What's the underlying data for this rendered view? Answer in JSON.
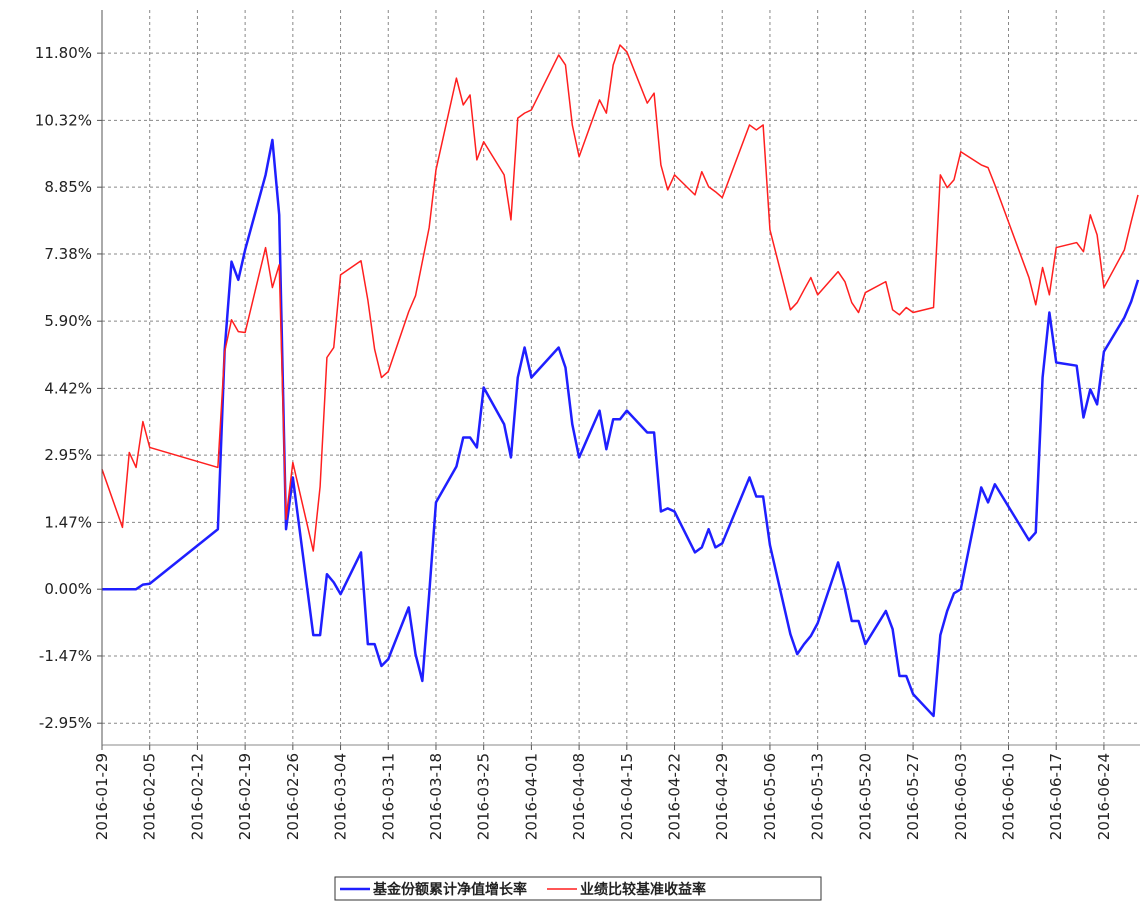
{
  "chart_data": {
    "type": "line",
    "x": [
      "2016-01-29",
      "2016-02-01",
      "2016-02-02",
      "2016-02-03",
      "2016-02-04",
      "2016-02-05",
      "2016-02-15",
      "2016-02-16",
      "2016-02-17",
      "2016-02-18",
      "2016-02-19",
      "2016-02-22",
      "2016-02-23",
      "2016-02-24",
      "2016-02-25",
      "2016-02-26",
      "2016-02-29",
      "2016-03-01",
      "2016-03-02",
      "2016-03-03",
      "2016-03-04",
      "2016-03-07",
      "2016-03-08",
      "2016-03-09",
      "2016-03-10",
      "2016-03-11",
      "2016-03-14",
      "2016-03-15",
      "2016-03-16",
      "2016-03-17",
      "2016-03-18",
      "2016-03-21",
      "2016-03-22",
      "2016-03-23",
      "2016-03-24",
      "2016-03-25",
      "2016-03-28",
      "2016-03-29",
      "2016-03-30",
      "2016-03-31",
      "2016-04-01",
      "2016-04-05",
      "2016-04-06",
      "2016-04-07",
      "2016-04-08",
      "2016-04-11",
      "2016-04-12",
      "2016-04-13",
      "2016-04-14",
      "2016-04-15",
      "2016-04-18",
      "2016-04-19",
      "2016-04-20",
      "2016-04-21",
      "2016-04-22",
      "2016-04-25",
      "2016-04-26",
      "2016-04-27",
      "2016-04-28",
      "2016-04-29",
      "2016-05-03",
      "2016-05-04",
      "2016-05-05",
      "2016-05-06",
      "2016-05-09",
      "2016-05-10",
      "2016-05-11",
      "2016-05-12",
      "2016-05-13",
      "2016-05-16",
      "2016-05-17",
      "2016-05-18",
      "2016-05-19",
      "2016-05-20",
      "2016-05-23",
      "2016-05-24",
      "2016-05-25",
      "2016-05-26",
      "2016-05-27",
      "2016-05-30",
      "2016-05-31",
      "2016-06-01",
      "2016-06-02",
      "2016-06-03",
      "2016-06-06",
      "2016-06-07",
      "2016-06-08",
      "2016-06-13",
      "2016-06-14",
      "2016-06-15",
      "2016-06-16",
      "2016-06-17",
      "2016-06-20",
      "2016-06-21",
      "2016-06-22",
      "2016-06-23",
      "2016-06-24",
      "2016-06-27",
      "2016-06-28",
      "2016-06-29"
    ],
    "series": [
      {
        "name": "基金份额累计净值增长率",
        "color": "#1f1fff",
        "values": [
          0,
          0,
          0,
          0,
          0.1,
          0.12,
          1.32,
          5.27,
          7.21,
          6.81,
          7.47,
          9.12,
          9.89,
          8.24,
          1.32,
          2.46,
          -1.01,
          -1.01,
          0.33,
          0.15,
          -0.11,
          0.81,
          -1.21,
          -1.21,
          -1.69,
          -1.54,
          -0.4,
          -1.43,
          -2.02,
          -0.11,
          1.91,
          2.7,
          3.34,
          3.34,
          3.12,
          4.44,
          3.63,
          2.9,
          4.66,
          5.32,
          4.66,
          5.32,
          4.88,
          3.63,
          2.9,
          3.93,
          3.08,
          3.74,
          3.74,
          3.93,
          3.45,
          3.45,
          1.71,
          1.78,
          1.71,
          0.81,
          0.92,
          1.32,
          0.92,
          1.01,
          2.46,
          2.04,
          2.04,
          0.97,
          -0.99,
          -1.43,
          -1.21,
          -1.03,
          -0.75,
          0.59,
          0,
          -0.7,
          -0.7,
          -1.21,
          -0.48,
          -0.88,
          -1.91,
          -1.91,
          -2.31,
          -2.79,
          -1.01,
          -0.48,
          -0.09,
          0,
          2.24,
          1.91,
          2.31,
          1.08,
          1.25,
          4.66,
          6.09,
          4.99,
          4.92,
          3.78,
          4.4,
          4.07,
          5.23,
          5.98,
          6.33,
          6.81
        ]
      },
      {
        "name": "业绩比较基准收益率",
        "color": "#ff1f1f",
        "values": [
          2.64,
          1.36,
          3.01,
          2.68,
          3.69,
          3.12,
          2.68,
          5.23,
          5.93,
          5.67,
          5.65,
          7.52,
          6.64,
          7.14,
          1.54,
          2.79,
          0.84,
          2.26,
          5.1,
          5.32,
          6.92,
          7.23,
          6.37,
          5.28,
          4.66,
          4.79,
          6.11,
          6.46,
          7.21,
          7.96,
          9.23,
          11.25,
          10.66,
          10.88,
          9.45,
          9.85,
          9.12,
          8.13,
          10.37,
          10.48,
          10.55,
          11.76,
          11.54,
          10.22,
          9.52,
          10.77,
          10.48,
          11.54,
          11.98,
          11.83,
          10.7,
          10.92,
          9.34,
          8.79,
          9.12,
          8.68,
          9.19,
          8.86,
          8.75,
          8.62,
          10.22,
          10.11,
          10.22,
          7.91,
          6.15,
          6.31,
          6.59,
          6.86,
          6.48,
          6.99,
          6.77,
          6.31,
          6.09,
          6.53,
          6.77,
          6.15,
          6.04,
          6.2,
          6.09,
          6.2,
          9.12,
          8.84,
          9.01,
          9.63,
          9.34,
          9.28,
          8.9,
          6.86,
          6.26,
          7.08,
          6.48,
          7.52,
          7.63,
          7.43,
          8.24,
          7.8,
          6.64,
          7.47,
          8.09,
          8.68
        ]
      }
    ],
    "xlim": [
      "2016-01-29",
      "2016-06-29"
    ],
    "xticks": [
      "2016-01-29",
      "2016-02-05",
      "2016-02-12",
      "2016-02-19",
      "2016-02-26",
      "2016-03-04",
      "2016-03-11",
      "2016-03-18",
      "2016-03-25",
      "2016-04-01",
      "2016-04-08",
      "2016-04-15",
      "2016-04-22",
      "2016-04-29",
      "2016-05-06",
      "2016-05-13",
      "2016-05-20",
      "2016-05-27",
      "2016-06-03",
      "2016-06-10",
      "2016-06-17",
      "2016-06-24"
    ],
    "ylim": [
      -3.43,
      12.75
    ],
    "yticks": [
      {
        "value": -2.95,
        "label": "-2.95%"
      },
      {
        "value": -1.47,
        "label": "-1.47%"
      },
      {
        "value": 0,
        "label": "0.00%"
      },
      {
        "value": 1.47,
        "label": "1.47%"
      },
      {
        "value": 2.95,
        "label": "2.95%"
      },
      {
        "value": 4.42,
        "label": "4.42%"
      },
      {
        "value": 5.9,
        "label": "5.90%"
      },
      {
        "value": 7.38,
        "label": "7.38%"
      },
      {
        "value": 8.85,
        "label": "8.85%"
      },
      {
        "value": 10.32,
        "label": "10.32%"
      },
      {
        "value": 11.8,
        "label": "11.80%"
      }
    ],
    "grid": true,
    "legend": "bottom"
  }
}
